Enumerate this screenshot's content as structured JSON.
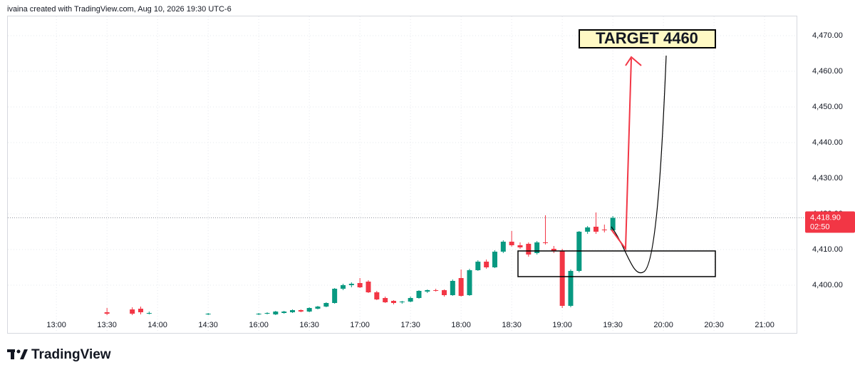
{
  "header": "ivaina created with TradingView.com, Aug 10, 2026 19:30 UTC-6",
  "logo": "TradingView",
  "chart_data": {
    "type": "candlestick",
    "annotation": "TARGET 4460",
    "categories": [
      null,
      null,
      null,
      null,
      null,
      "13:00",
      null,
      null,
      null,
      null,
      null,
      "13:30",
      null,
      null,
      null,
      null,
      null,
      "14:00",
      null,
      null,
      null,
      null,
      null,
      "14:30",
      null,
      null,
      null,
      null,
      null,
      "16:00",
      null,
      null,
      null,
      null,
      null,
      "16:30",
      null,
      null,
      null,
      null,
      null,
      "17:00",
      null,
      null,
      null,
      null,
      null,
      "17:30",
      null,
      null,
      null,
      null,
      null,
      "18:00",
      null,
      null,
      null,
      null,
      null,
      "18:30",
      null,
      null,
      null,
      null,
      null,
      "19:00",
      null,
      null,
      null,
      null,
      null,
      "19:30",
      null,
      null,
      null,
      null,
      null,
      "20:00",
      null,
      null,
      null,
      null,
      null,
      "20:30",
      null,
      null,
      null,
      null,
      null,
      "21:00",
      null,
      null,
      null
    ],
    "open": [
      null,
      null,
      null,
      null,
      null,
      null,
      null,
      null,
      null,
      null,
      null,
      4392.4,
      null,
      null,
      4393.2,
      4393.4,
      4392.0,
      null,
      null,
      null,
      null,
      null,
      null,
      4391.8,
      null,
      null,
      null,
      null,
      null,
      4391.8,
      4392.0,
      4391.8,
      4392.2,
      4392.4,
      4393.0,
      4392.6,
      4393.4,
      4394.0,
      4395.0,
      4399.0,
      4400.0,
      4400.6,
      4401.0,
      4398.0,
      4396.4,
      4395.6,
      4395.2,
      4395.4,
      4396.4,
      4398.2,
      4398.6,
      4398.6,
      4397.2,
      4402.0,
      4397.2,
      4404.2,
      4406.6,
      4405.0,
      4409.4,
      4412.2,
      4411.2,
      4411.6,
      4409.0,
      4412.0,
      4410.2,
      4409.6,
      4394.2,
      4404.0,
      4415.0,
      4416.4,
      4415.6,
      4415.4,
      null,
      null,
      null,
      null,
      null,
      null,
      null,
      null,
      null,
      null,
      null,
      null,
      null,
      null,
      null,
      null,
      null,
      null,
      null,
      null,
      null
    ],
    "high": [
      null,
      null,
      null,
      null,
      null,
      null,
      null,
      null,
      null,
      null,
      null,
      4393.6,
      null,
      null,
      4393.8,
      4394.0,
      4392.6,
      null,
      null,
      null,
      null,
      null,
      null,
      4392.2,
      null,
      null,
      null,
      null,
      null,
      4392.2,
      4392.4,
      4392.8,
      4392.8,
      4393.2,
      4393.2,
      4393.8,
      4394.2,
      4395.2,
      4399.2,
      4400.4,
      4400.8,
      4402.0,
      4401.4,
      4398.4,
      4396.8,
      4395.8,
      4395.6,
      4396.8,
      4398.6,
      4398.8,
      4399.0,
      4398.8,
      4401.6,
      4404.4,
      4404.6,
      4407.0,
      4407.2,
      4409.8,
      4412.6,
      4415.2,
      4412.0,
      4412.0,
      4412.4,
      4419.6,
      4411.0,
      4410.2,
      4404.4,
      4415.2,
      4416.6,
      4420.4,
      4417.0,
      4419.4,
      null,
      null,
      null,
      null,
      null,
      null,
      null,
      null,
      null,
      null,
      null,
      null,
      null,
      null,
      null,
      null,
      null,
      null,
      null,
      null,
      null
    ],
    "low": [
      null,
      null,
      null,
      null,
      null,
      null,
      null,
      null,
      null,
      null,
      null,
      4391.6,
      null,
      null,
      4391.6,
      4391.8,
      4391.8,
      null,
      null,
      null,
      null,
      null,
      null,
      4391.6,
      null,
      null,
      null,
      null,
      null,
      4391.6,
      4391.8,
      4391.6,
      4392.0,
      4392.2,
      4392.4,
      4392.4,
      4393.2,
      4393.8,
      4394.8,
      4398.6,
      4399.4,
      4399.2,
      4397.8,
      4395.8,
      4395.0,
      4394.6,
      4394.8,
      4395.2,
      4396.2,
      4397.8,
      4398.2,
      4396.8,
      4397.0,
      4396.8,
      4397.0,
      4404.0,
      4404.6,
      4404.8,
      4409.0,
      4410.8,
      4410.2,
      4408.0,
      4408.6,
      4411.4,
      4409.0,
      4393.6,
      4393.8,
      4403.6,
      4414.4,
      4414.4,
      4414.8,
      4415.0,
      null,
      null,
      null,
      null,
      null,
      null,
      null,
      null,
      null,
      null,
      null,
      null,
      null,
      null,
      null,
      null,
      null,
      null,
      null,
      null,
      null
    ],
    "close": [
      null,
      null,
      null,
      null,
      null,
      null,
      null,
      null,
      null,
      null,
      null,
      4392.0,
      null,
      null,
      4392.0,
      4392.4,
      4392.2,
      null,
      null,
      null,
      null,
      null,
      null,
      4392.0,
      null,
      null,
      null,
      null,
      null,
      4392.0,
      4392.2,
      4392.6,
      4392.6,
      4393.0,
      4392.6,
      4393.6,
      4394.0,
      4395.0,
      4399.0,
      4400.0,
      4400.4,
      4399.4,
      4398.0,
      4396.0,
      4395.2,
      4395.0,
      4395.4,
      4396.4,
      4398.4,
      4398.6,
      4398.4,
      4397.2,
      4401.2,
      4397.0,
      4404.2,
      4406.6,
      4405.0,
      4409.4,
      4412.2,
      4411.2,
      4410.6,
      4408.6,
      4412.0,
      4411.8,
      4409.6,
      4394.2,
      4404.0,
      4415.0,
      4416.2,
      4415.0,
      4415.4,
      4418.9,
      null,
      null,
      null,
      null,
      null,
      null,
      null,
      null,
      null,
      null,
      null,
      null,
      null,
      null,
      null,
      null,
      null,
      null,
      null,
      null,
      null
    ],
    "up_color": "#089981",
    "down_color": "#f23645",
    "ylim": [
      4387,
      4476.4
    ],
    "yticks": [
      {
        "value": 4400,
        "label": "4,400.00"
      },
      {
        "value": 4410,
        "label": "4,410.00"
      },
      {
        "value": 4420,
        "label": "4,420.00"
      },
      {
        "value": 4430,
        "label": "4,430.00"
      },
      {
        "value": 4440,
        "label": "4,440.00"
      },
      {
        "value": 4450,
        "label": "4,450.00"
      },
      {
        "value": 4460,
        "label": "4,460.00"
      },
      {
        "value": 4470,
        "label": "4,470.00"
      }
    ],
    "last_price": {
      "value": 4418.9,
      "label": "4,418.90"
    },
    "countdown": "02:50",
    "grid": true
  }
}
